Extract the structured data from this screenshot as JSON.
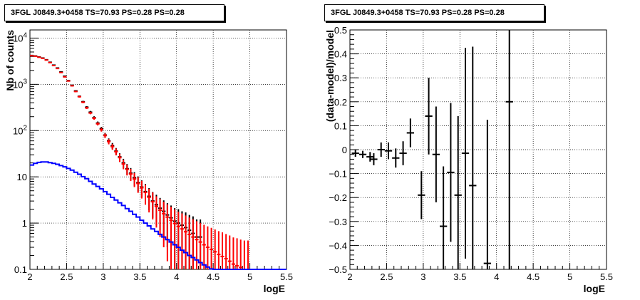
{
  "chart_data": [
    {
      "type": "line",
      "title": "3FGL J0849.3+0458 TS=70.93 PS=0.28 PS=0.28",
      "xlabel": "logE",
      "ylabel": "Nb of counts",
      "yscale": "log",
      "xlim": [
        2,
        5.5
      ],
      "ylim": [
        0.1,
        15000
      ],
      "grid": true,
      "x_ticks": [
        "2",
        "2.5",
        "3",
        "3.5",
        "4",
        "4.5",
        "5",
        "5.5"
      ],
      "y_ticks": [
        "0.1",
        "1",
        "10",
        "10^2",
        "10^3",
        "10^4"
      ],
      "series": [
        {
          "color": "#000000",
          "style": "errorbar",
          "x": [
            2.025,
            2.075,
            2.125,
            2.175,
            2.225,
            2.275,
            2.325,
            2.375,
            2.425,
            2.475,
            2.525,
            2.575,
            2.625,
            2.675,
            2.725,
            2.775,
            2.825,
            2.875,
            2.925,
            2.975,
            3.025,
            3.075,
            3.125,
            3.175,
            3.225,
            3.275,
            3.325,
            3.375,
            3.425,
            3.475,
            3.525,
            3.575,
            3.625,
            3.675,
            3.725,
            3.775,
            3.825,
            3.875,
            3.925,
            3.975,
            4.025,
            4.075,
            4.125,
            4.175,
            4.225,
            4.275,
            4.325
          ],
          "y": [
            4200,
            4100,
            3900,
            3700,
            3400,
            3000,
            2600,
            2250,
            1850,
            1500,
            1200,
            950,
            720,
            550,
            420,
            320,
            250,
            190,
            145,
            110,
            80,
            60,
            47,
            36,
            27,
            20,
            15,
            12,
            9.5,
            7.5,
            6,
            4.8,
            3.8,
            3,
            2.5,
            2.1,
            1.8,
            1.5,
            1.3,
            1.1,
            1.0,
            0.9,
            0.8,
            0.7,
            0.6,
            0.5,
            0.5
          ],
          "yerr": [
            65,
            64,
            62,
            61,
            58,
            55,
            51,
            47,
            43,
            39,
            35,
            31,
            27,
            23,
            20,
            18,
            16,
            14,
            12,
            10,
            9,
            7.7,
            6.9,
            6,
            5.2,
            4.5,
            3.9,
            3.5,
            3.1,
            2.7,
            2.4,
            2.2,
            1.9,
            1.7,
            1.6,
            1.4,
            1.3,
            1.2,
            1.1,
            1,
            1,
            0.9,
            0.9,
            0.8,
            0.8,
            0.7,
            0.7
          ]
        },
        {
          "color": "#ff0000",
          "style": "errorbar",
          "x": [
            2.025,
            2.075,
            2.125,
            2.175,
            2.225,
            2.275,
            2.325,
            2.375,
            2.425,
            2.475,
            2.525,
            2.575,
            2.625,
            2.675,
            2.725,
            2.775,
            2.825,
            2.875,
            2.925,
            2.975,
            3.025,
            3.075,
            3.125,
            3.175,
            3.225,
            3.275,
            3.325,
            3.375,
            3.425,
            3.475,
            3.525,
            3.575,
            3.625,
            3.675,
            3.725,
            3.775,
            3.825,
            3.875,
            3.925,
            3.975,
            4.025,
            4.075,
            4.125,
            4.175,
            4.225,
            4.275,
            4.325,
            4.375,
            4.425,
            4.475,
            4.525,
            4.575,
            4.625,
            4.675,
            4.725,
            4.775,
            4.825,
            4.875,
            4.925,
            4.975
          ],
          "y": [
            4150,
            4050,
            3850,
            3650,
            3350,
            2950,
            2550,
            2200,
            1800,
            1450,
            1180,
            930,
            700,
            540,
            410,
            310,
            240,
            185,
            140,
            105,
            78,
            58,
            45,
            35,
            26,
            19,
            14.5,
            11.5,
            9,
            7.2,
            5.8,
            4.6,
            3.6,
            2.9,
            2.3,
            1.9,
            1.6,
            1.35,
            1.15,
            0.98,
            0.85,
            0.75,
            0.65,
            0.57,
            0.5,
            0.44,
            0.39,
            0.34,
            0.3,
            0.27,
            0.24,
            0.21,
            0.19,
            0.17,
            0.15,
            0.13,
            0.12,
            0.11,
            0.1,
            0.1
          ],
          "yerr": [
            64,
            63,
            62,
            60,
            58,
            54,
            50,
            46,
            42,
            38,
            34,
            30,
            26,
            23,
            20,
            17,
            15,
            13,
            11,
            10,
            8.8,
            7.6,
            6.7,
            5.9,
            5.1,
            4.4,
            3.8,
            3.4,
            3,
            2.7,
            2.4,
            2.1,
            1.9,
            1.7,
            1.5,
            1.4,
            1.3,
            1.2,
            1.1,
            0.99,
            0.92,
            0.87,
            0.81,
            0.75,
            0.71,
            0.66,
            0.62,
            0.58,
            0.55,
            0.52,
            0.49,
            0.46,
            0.44,
            0.41,
            0.39,
            0.36,
            0.35,
            0.33,
            0.32,
            0.32
          ]
        },
        {
          "color": "#0000ff",
          "style": "step",
          "x": [
            2.0,
            2.05,
            2.1,
            2.15,
            2.2,
            2.25,
            2.3,
            2.35,
            2.4,
            2.45,
            2.5,
            2.55,
            2.6,
            2.65,
            2.7,
            2.75,
            2.8,
            2.85,
            2.9,
            2.95,
            3.0,
            3.05,
            3.1,
            3.15,
            3.2,
            3.25,
            3.3,
            3.35,
            3.4,
            3.45,
            3.5,
            3.55,
            3.6,
            3.65,
            3.7,
            3.75,
            3.8,
            3.85,
            3.9,
            3.95,
            4.0,
            4.05,
            4.1,
            4.15,
            4.2,
            4.25,
            4.3,
            4.35,
            4.4,
            4.45,
            4.5,
            4.55,
            4.6,
            4.65,
            4.7,
            4.75,
            4.8,
            4.85,
            4.9,
            4.95,
            5.0,
            5.05,
            5.1,
            5.15,
            5.2,
            5.25,
            5.3,
            5.35,
            5.4,
            5.45
          ],
          "y": [
            18,
            19.5,
            20.5,
            21,
            21,
            20.3,
            19.5,
            18.7,
            17.5,
            16.5,
            15.2,
            14,
            12.6,
            11.4,
            10.1,
            9.1,
            8,
            7,
            6.2,
            5.5,
            4.8,
            4.2,
            3.6,
            3.15,
            2.75,
            2.4,
            2.05,
            1.8,
            1.55,
            1.35,
            1.15,
            1.0,
            0.87,
            0.75,
            0.66,
            0.57,
            0.5,
            0.44,
            0.39,
            0.34,
            0.3,
            0.26,
            0.23,
            0.2,
            0.18,
            0.16,
            0.14,
            0.125,
            0.112,
            0.102,
            0.1,
            0.1,
            0.1,
            0.1,
            0.1,
            0.1,
            0.1,
            0.1,
            0.1,
            0.1,
            0.1,
            0.1,
            0.1,
            0.1,
            0.1,
            0.1,
            0.1,
            0.1,
            0.1,
            0.1
          ]
        }
      ]
    },
    {
      "type": "scatter",
      "title": "3FGL J0849.3+0458 TS=70.93 PS=0.28 PS=0.28",
      "xlabel": "logE",
      "ylabel": "(data-model)/model",
      "xlim": [
        2,
        5.5
      ],
      "ylim": [
        -0.5,
        0.5
      ],
      "grid": true,
      "x_ticks": [
        "2",
        "2.5",
        "3",
        "3.5",
        "4",
        "4.5",
        "5",
        "5.5"
      ],
      "y_ticks": [
        "−0.5",
        "−0.4",
        "−0.3",
        "−0.2",
        "−0.1",
        "0",
        "0.1",
        "0.2",
        "0.3",
        "0.4",
        "0.5"
      ],
      "series": [
        {
          "color": "#000000",
          "style": "errorbar",
          "x": [
            2.075,
            2.175,
            2.275,
            2.325,
            2.425,
            2.525,
            2.625,
            2.725,
            2.825,
            2.975,
            3.075,
            3.175,
            3.275,
            3.375,
            3.475,
            3.575,
            3.675,
            3.875,
            4.175
          ],
          "y": [
            -0.015,
            -0.02,
            -0.03,
            -0.04,
            0.0,
            -0.005,
            -0.035,
            -0.015,
            0.07,
            -0.19,
            0.14,
            -0.02,
            -0.32,
            -0.095,
            -0.19,
            -0.015,
            -0.15,
            -0.475,
            0.2
          ],
          "yerr": [
            0.015,
            0.015,
            0.02,
            0.025,
            0.03,
            0.035,
            0.04,
            0.05,
            0.06,
            0.1,
            0.16,
            0.2,
            0.25,
            0.29,
            0.33,
            0.44,
            0.58,
            0.6,
            0.9
          ]
        }
      ]
    }
  ]
}
